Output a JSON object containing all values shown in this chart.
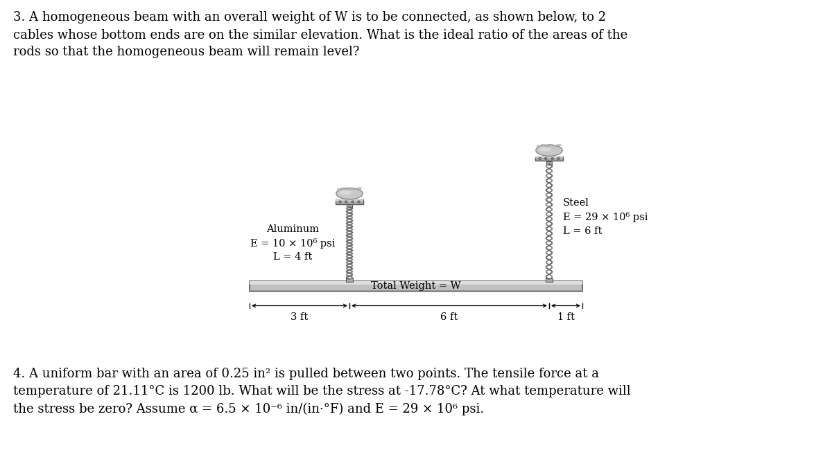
{
  "bg_color": "#ffffff",
  "title3": "3. A homogeneous beam with an overall weight of W is to be connected, as shown below, to 2\ncables whose bottom ends are on the similar elevation. What is the ideal ratio of the areas of the\nrods so that the homogeneous beam will remain level?",
  "title4": "4. A uniform bar with an area of 0.25 in² is pulled between two points. The tensile force at a\ntemperature of 21.11°C is 1200 lb. What will be the stress at -17.78°C? At what temperature will\nthe stress be zero? Assume α = 6.5 × 10⁻⁶ in/(in·°F) and E = 29 × 10⁶ psi.",
  "text_fontsize": 13.0,
  "diagram_fontsize": 10.5,
  "alum_label": "Aluminum\nE = 10 × 10⁶ psi\nL = 4 ft",
  "steel_label": "Steel\nE = 29 × 10⁶ psi\nL = 6 ft",
  "beam_label": "Total Weight = W",
  "dim_3ft": "3 ft",
  "dim_6ft": "6 ft",
  "dim_1ft": "1 ft",
  "beam_color": "#b8b8b8",
  "beam_edge_color": "#555555",
  "rope_color": "#888888",
  "anchor_color": "#999999"
}
